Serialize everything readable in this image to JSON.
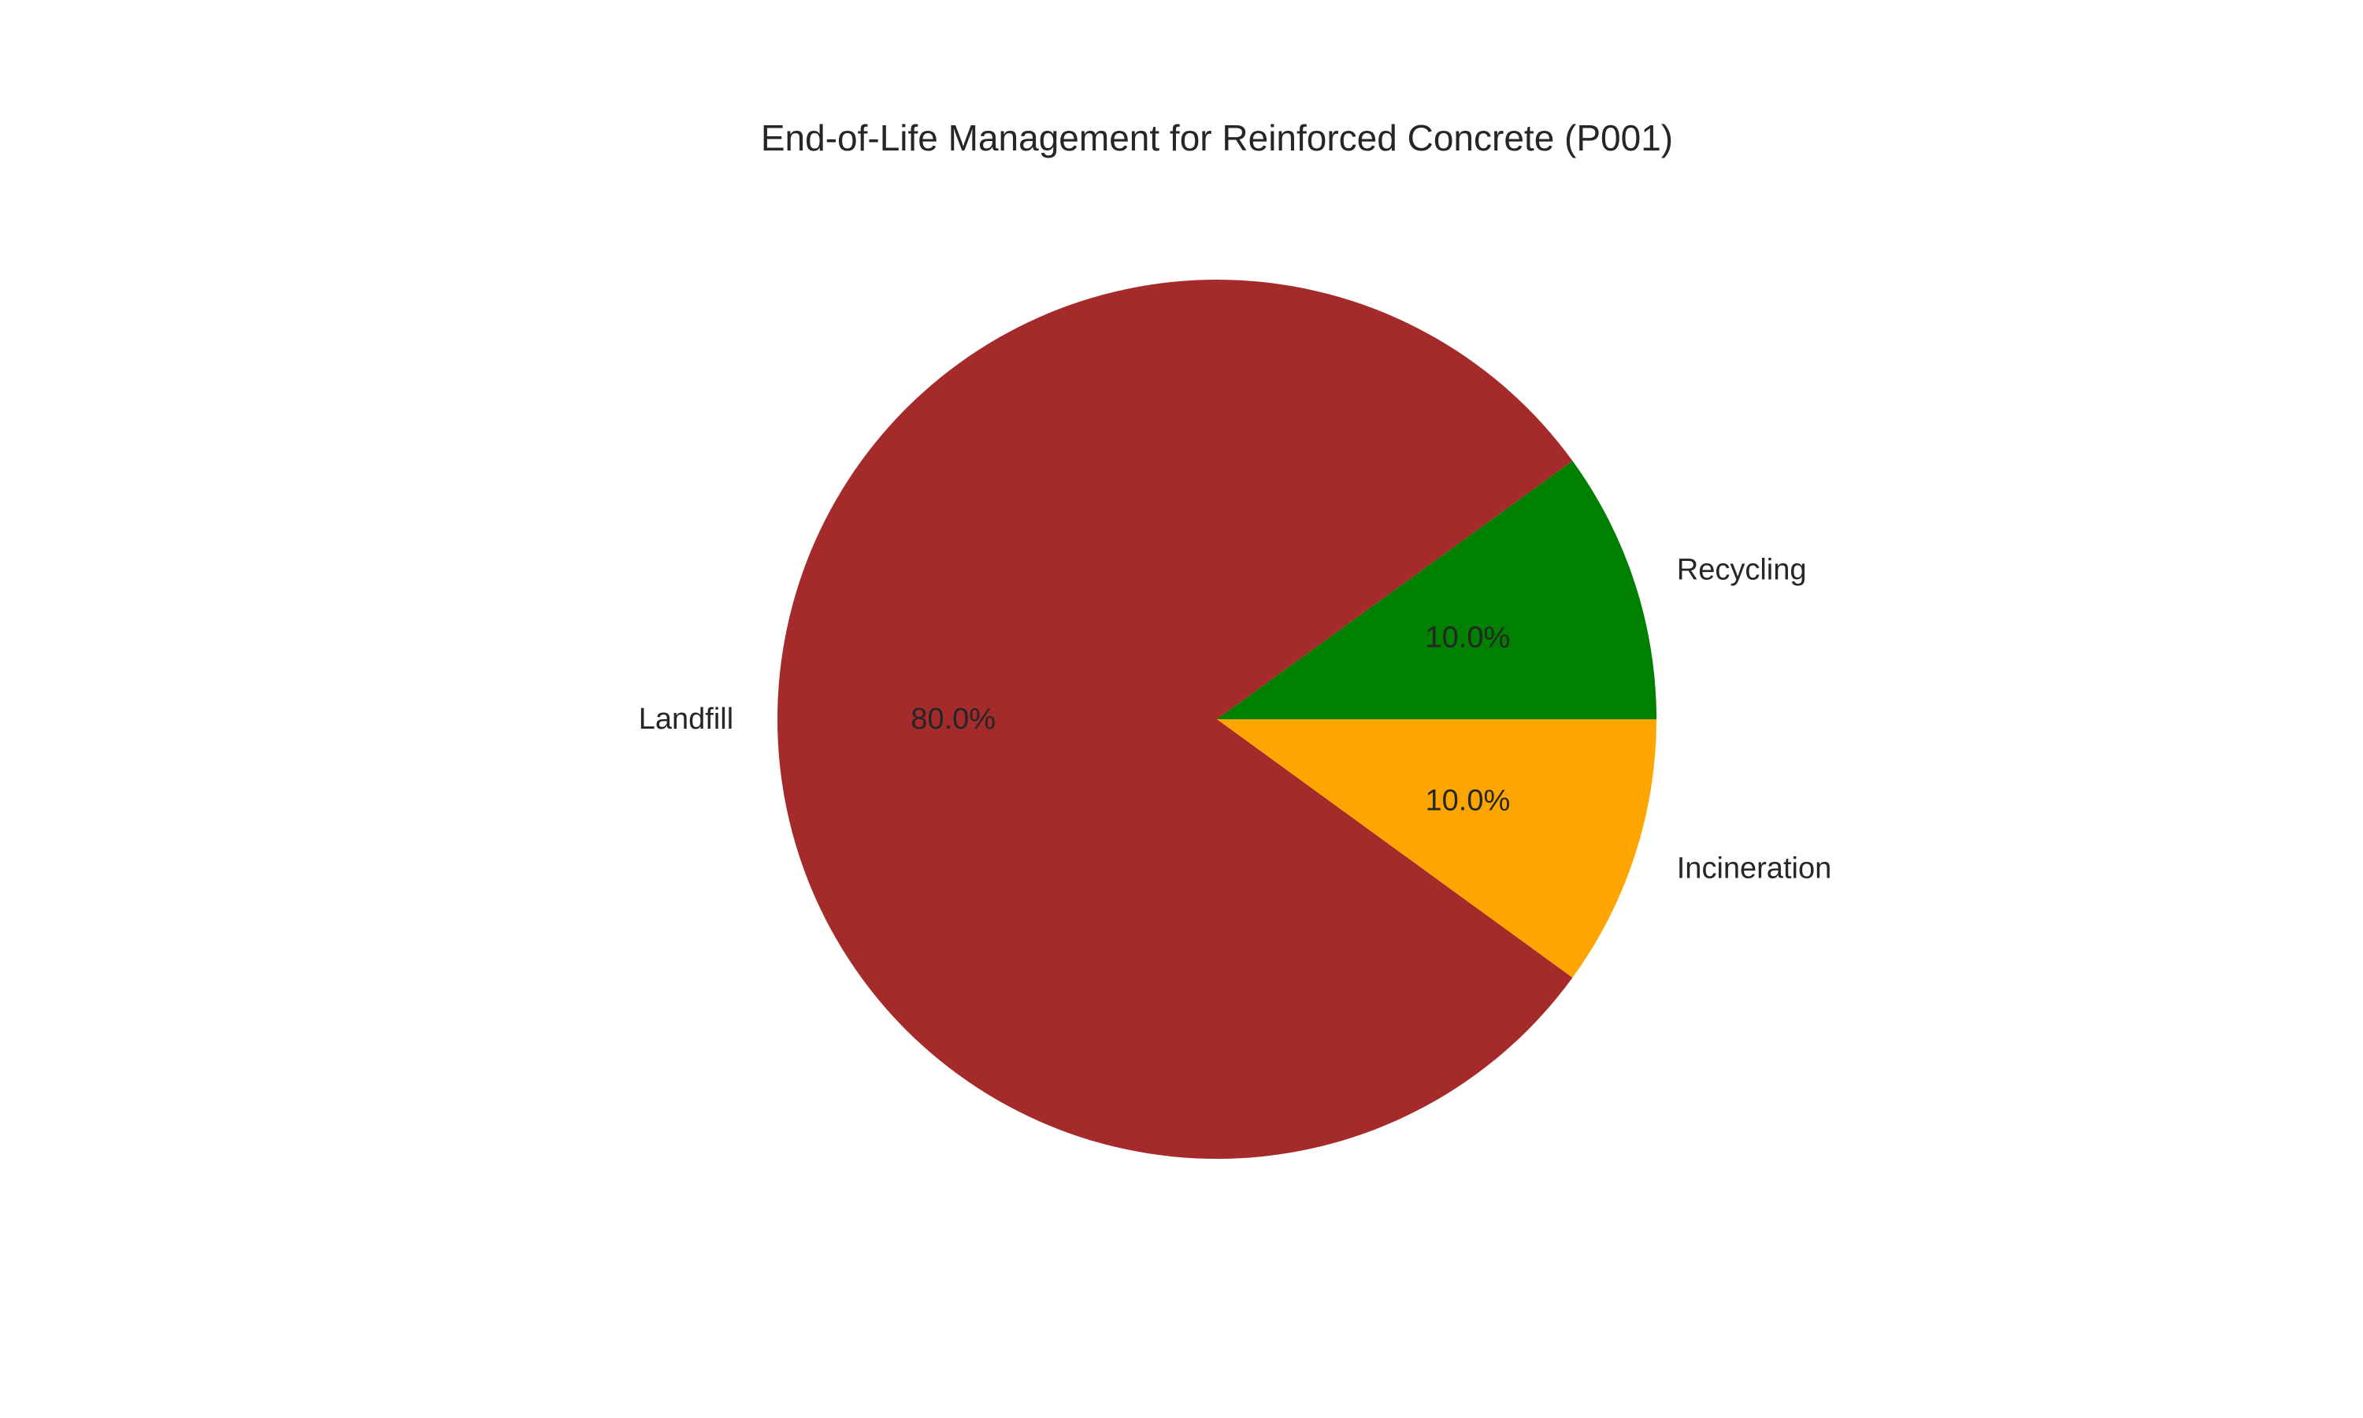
{
  "chart_data": {
    "type": "pie",
    "title": "End-of-Life Management for Reinforced Concrete (P001)",
    "slices": [
      {
        "label": "Recycling",
        "value": 10,
        "pct_label": "10.0%",
        "color": "#008000"
      },
      {
        "label": "Landfill",
        "value": 80,
        "pct_label": "80.0%",
        "color": "#a52a2a"
      },
      {
        "label": "Incineration",
        "value": 10,
        "pct_label": "10.0%",
        "color": "#ffa500"
      }
    ],
    "start_angle_deg": 0,
    "direction": "counterclockwise",
    "legend": "none"
  }
}
